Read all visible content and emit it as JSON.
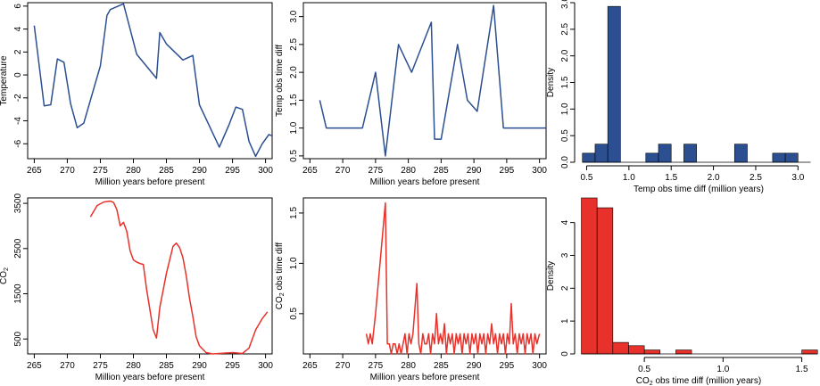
{
  "colors": {
    "blue": "#2b4f91",
    "red": "#e8312a",
    "axis": "#000000"
  },
  "chart_data": [
    {
      "id": "temp",
      "type": "line",
      "xlabel": "Million years before present",
      "ylabel": "Temperature",
      "xlim": [
        264,
        301
      ],
      "ylim": [
        -7.3,
        6.3
      ],
      "xticks": [
        265,
        270,
        275,
        280,
        285,
        290,
        295,
        300
      ],
      "yticks": [
        -6,
        -4,
        -2,
        0,
        2,
        4,
        6
      ],
      "color": "blue",
      "x": [
        265.0,
        266.5,
        267.5,
        268.5,
        269.5,
        270.5,
        271.5,
        272.5,
        275.0,
        276.0,
        276.5,
        278.5,
        279.5,
        280.5,
        283.5,
        284.0,
        285.0,
        287.5,
        289.0,
        290.0,
        293.0,
        294.5,
        295.5,
        296.5,
        297.5,
        298.5,
        299.5,
        300.5,
        301.0
      ],
      "y": [
        4.3,
        -2.7,
        -2.6,
        1.4,
        1.1,
        -2.5,
        -4.6,
        -4.2,
        0.8,
        5.2,
        5.7,
        6.2,
        4.0,
        1.8,
        -0.3,
        3.7,
        2.7,
        1.3,
        1.7,
        -2.6,
        -6.3,
        -4.3,
        -2.8,
        -3.0,
        -5.8,
        -7.1,
        -6.0,
        -5.2,
        -5.3
      ]
    },
    {
      "id": "tempdiff",
      "type": "line",
      "xlabel": "Million years before present",
      "ylabel": "Temp obs time diff",
      "xlim": [
        264,
        301
      ],
      "ylim": [
        0.45,
        3.25
      ],
      "xticks": [
        265,
        270,
        275,
        280,
        285,
        290,
        295,
        300
      ],
      "yticks": [
        0.5,
        1.0,
        1.5,
        2.0,
        2.5,
        3.0
      ],
      "color": "blue",
      "x": [
        266.5,
        267.5,
        273.0,
        275.0,
        276.5,
        278.5,
        280.5,
        283.5,
        284.0,
        285.0,
        287.5,
        289.0,
        290.5,
        293.0,
        294.5,
        301.0
      ],
      "y": [
        1.5,
        1.0,
        1.0,
        2.0,
        0.5,
        2.5,
        2.0,
        2.9,
        0.8,
        0.8,
        2.5,
        1.5,
        1.3,
        3.2,
        1.0,
        1.0
      ]
    },
    {
      "id": "temphist",
      "type": "bar",
      "xlabel": "Temp obs time diff (million years)",
      "ylabel": "Density",
      "xlim": [
        0.4,
        3.25
      ],
      "ylim": [
        0,
        3.0
      ],
      "xticks": [
        0.5,
        1.0,
        1.5,
        2.0,
        2.5,
        3.0
      ],
      "xticklabels": [
        "0.5",
        "1.0",
        "1.5",
        "2.0",
        "2.5",
        "3.0"
      ],
      "yticks": [
        0.0,
        0.5,
        1.0,
        1.5,
        2.0,
        2.5,
        3.0
      ],
      "color": "blue",
      "bin_edges": [
        0.45,
        0.6,
        0.75,
        0.9,
        1.05,
        1.2,
        1.35,
        1.5,
        1.65,
        1.8,
        1.95,
        2.1,
        2.25,
        2.4,
        2.55,
        2.7,
        2.85,
        3.0,
        3.15
      ],
      "values": [
        0.17,
        0.34,
        2.93,
        0,
        0,
        0.17,
        0.34,
        0,
        0.34,
        0,
        0,
        0,
        0.34,
        0,
        0,
        0.17,
        0.17,
        0
      ]
    },
    {
      "id": "co2",
      "type": "line",
      "xlabel": "Million years before present",
      "ylabel": "CO",
      "ylabel_sub": "2",
      "xlim": [
        264,
        301
      ],
      "ylim": [
        170,
        3620
      ],
      "xticks": [
        265,
        270,
        275,
        280,
        285,
        290,
        295,
        300
      ],
      "yticks": [
        500,
        1500,
        2500,
        3500
      ],
      "color": "red",
      "x": [
        273.5,
        274.5,
        275.5,
        276.5,
        277.0,
        277.5,
        278.0,
        278.5,
        279.0,
        279.5,
        280.0,
        280.5,
        281.0,
        281.5,
        282.0,
        283.0,
        283.5,
        284.0,
        285.0,
        286.0,
        286.5,
        287.0,
        287.5,
        288.0,
        288.5,
        289.0,
        289.5,
        290.0,
        291.0,
        292.0,
        293.0,
        295.0,
        296.5,
        297.5,
        298.5,
        299.5,
        300.3
      ],
      "y": [
        3200,
        3450,
        3530,
        3550,
        3520,
        3360,
        3000,
        3080,
        2880,
        2450,
        2250,
        2200,
        2170,
        2150,
        1600,
        700,
        520,
        1200,
        1950,
        2550,
        2620,
        2520,
        2300,
        1900,
        1400,
        1000,
        550,
        350,
        200,
        170,
        180,
        200,
        180,
        300,
        700,
        950,
        1100
      ]
    },
    {
      "id": "co2diff",
      "type": "line",
      "xlabel": "Million years before present",
      "ylabel": "CO",
      "ylabel_sub": "2",
      "ylabel_rest": " obs time diff",
      "xlim": [
        264,
        301
      ],
      "ylim": [
        0.1,
        1.65
      ],
      "xticks": [
        265,
        270,
        275,
        280,
        285,
        290,
        295,
        300
      ],
      "yticks": [
        0.5,
        1.0,
        1.5
      ],
      "color": "red",
      "x": [
        273.6,
        273.9,
        274.2,
        274.5,
        275.0,
        276.5,
        276.8,
        277.1,
        277.4,
        277.7,
        278.0,
        278.3,
        278.6,
        278.9,
        279.2,
        279.5,
        279.8,
        280.1,
        280.4,
        280.7,
        281.3,
        281.6,
        281.9,
        282.2,
        282.5,
        282.8,
        283.1,
        283.4,
        283.7,
        284.0,
        284.3,
        284.6,
        284.9,
        285.2,
        285.5,
        285.8,
        286.1,
        286.4,
        286.7,
        287.0,
        287.3,
        287.6,
        287.9,
        288.2,
        288.5,
        288.8,
        289.1,
        289.4,
        289.7,
        290.0,
        290.3,
        290.6,
        290.9,
        291.2,
        291.5,
        291.8,
        292.1,
        292.4,
        292.7,
        293.0,
        293.3,
        293.6,
        293.9,
        294.2,
        294.5,
        294.8,
        295.1,
        295.4,
        295.7,
        296.0,
        296.3,
        296.6,
        296.9,
        297.2,
        297.5,
        297.8,
        298.1,
        298.4,
        298.7,
        299.0,
        299.3,
        299.6,
        300.0
      ],
      "y": [
        0.3,
        0.2,
        0.3,
        0.2,
        0.5,
        1.6,
        0.2,
        0.2,
        0.1,
        0.2,
        0.2,
        0.1,
        0.2,
        0.1,
        0.2,
        0.3,
        0.1,
        0.3,
        0.2,
        0.3,
        0.8,
        0.2,
        0.1,
        0.3,
        0.2,
        0.2,
        0.3,
        0.1,
        0.3,
        0.2,
        0.5,
        0.2,
        0.3,
        0.2,
        0.4,
        0.1,
        0.3,
        0.2,
        0.3,
        0.1,
        0.3,
        0.2,
        0.3,
        0.1,
        0.3,
        0.2,
        0.3,
        0.1,
        0.3,
        0.2,
        0.3,
        0.1,
        0.3,
        0.2,
        0.3,
        0.1,
        0.3,
        0.2,
        0.4,
        0.2,
        0.3,
        0.1,
        0.3,
        0.2,
        0.3,
        0.1,
        0.3,
        0.2,
        0.6,
        0.2,
        0.3,
        0.1,
        0.3,
        0.2,
        0.3,
        0.1,
        0.3,
        0.2,
        0.3,
        0.1,
        0.3,
        0.2,
        0.3
      ]
    },
    {
      "id": "co2hist",
      "type": "bar",
      "xlabel": "CO",
      "xlabel_sub": "2",
      "xlabel_rest": " obs time diff (million years)",
      "ylabel": "Density",
      "xlim": [
        0.08,
        1.61
      ],
      "ylim": [
        0,
        4.75
      ],
      "xticks": [
        0.5,
        1.0,
        1.5
      ],
      "xticklabels": [
        "0.5",
        "1.0",
        "1.5"
      ],
      "yticks": [
        0,
        1,
        2,
        3,
        4
      ],
      "color": "red",
      "bin_edges": [
        0.1,
        0.2,
        0.3,
        0.4,
        0.5,
        0.6,
        0.7,
        0.8,
        0.9,
        1.0,
        1.1,
        1.2,
        1.3,
        1.4,
        1.5,
        1.6
      ],
      "values": [
        4.75,
        4.45,
        0.35,
        0.25,
        0.12,
        0,
        0.12,
        0,
        0,
        0,
        0,
        0,
        0,
        0,
        0.12
      ]
    }
  ]
}
